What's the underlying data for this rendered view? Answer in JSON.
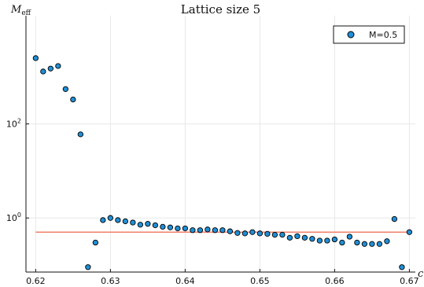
{
  "chart_data": {
    "type": "scatter",
    "title": "Lattice size 5",
    "ylabel": {
      "base": "M",
      "subscript": "eff"
    },
    "xlabel": "c",
    "yscale": "log",
    "xlim": [
      0.6187,
      0.6708
    ],
    "ylim_log10": [
      -1.15,
      4.3
    ],
    "xticks": [
      {
        "value": 0.62,
        "label": "0.62"
      },
      {
        "value": 0.63,
        "label": "0.63"
      },
      {
        "value": 0.64,
        "label": "0.64"
      },
      {
        "value": 0.65,
        "label": "0.65"
      },
      {
        "value": 0.66,
        "label": "0.66"
      },
      {
        "value": 0.67,
        "label": "0.67"
      }
    ],
    "yticks": [
      {
        "value": 1,
        "base": "10",
        "exp": "0"
      },
      {
        "value": 100,
        "base": "10",
        "exp": "2"
      }
    ],
    "grid": true,
    "legend": {
      "position": "top-right",
      "entries": [
        {
          "label": "M=0.5",
          "color": "#1f8fd6"
        }
      ]
    },
    "series": [
      {
        "name": "M=0.5",
        "kind": "points",
        "color": "#1f8fd6",
        "x": [
          0.62,
          0.621,
          0.622,
          0.623,
          0.624,
          0.625,
          0.626,
          0.627,
          0.628,
          0.629,
          0.63,
          0.631,
          0.632,
          0.633,
          0.634,
          0.635,
          0.636,
          0.637,
          0.638,
          0.639,
          0.64,
          0.641,
          0.642,
          0.643,
          0.644,
          0.645,
          0.646,
          0.647,
          0.648,
          0.649,
          0.65,
          0.651,
          0.652,
          0.653,
          0.654,
          0.655,
          0.656,
          0.657,
          0.658,
          0.659,
          0.66,
          0.661,
          0.662,
          0.663,
          0.664,
          0.665,
          0.666,
          0.667,
          0.668,
          0.669,
          0.67
        ],
        "y": [
          2500,
          1300,
          1500,
          1700,
          550,
          330,
          60,
          0.09,
          0.3,
          0.9,
          1.0,
          0.9,
          0.85,
          0.8,
          0.72,
          0.75,
          0.7,
          0.65,
          0.63,
          0.6,
          0.6,
          0.55,
          0.55,
          0.57,
          0.55,
          0.55,
          0.52,
          0.48,
          0.47,
          0.5,
          0.47,
          0.46,
          0.44,
          0.44,
          0.38,
          0.41,
          0.38,
          0.36,
          0.33,
          0.33,
          0.35,
          0.3,
          0.4,
          0.3,
          0.28,
          0.28,
          0.28,
          0.32,
          0.95,
          0.09,
          0.5
        ]
      },
      {
        "name": "",
        "kind": "hline",
        "color": "#f0806a",
        "y": 0.5
      }
    ]
  }
}
